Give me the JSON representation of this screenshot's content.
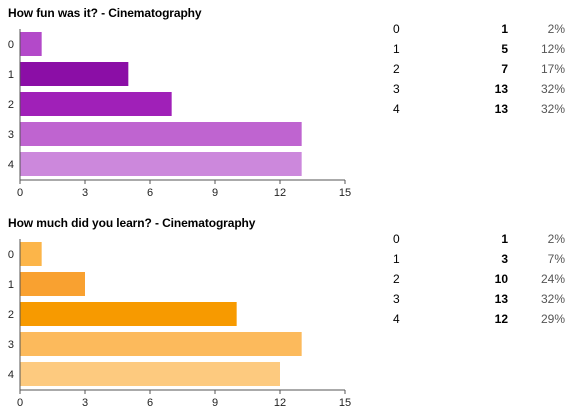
{
  "chart_data": [
    {
      "type": "bar",
      "orientation": "horizontal",
      "title": "How fun was it? - Cinematography",
      "categories": [
        "0",
        "1",
        "2",
        "3",
        "4"
      ],
      "values": [
        1,
        5,
        7,
        13,
        13
      ],
      "percents": [
        "2%",
        "12%",
        "17%",
        "32%",
        "32%"
      ],
      "xlim": [
        0,
        15
      ],
      "xticks": [
        "0",
        "3",
        "6",
        "9",
        "12",
        "15"
      ],
      "bar_colors": [
        "#b349c9",
        "#8b0ea6",
        "#a020b8",
        "#bf64d0",
        "#cc88dc"
      ],
      "grid": false
    },
    {
      "type": "bar",
      "orientation": "horizontal",
      "title": "How much did you learn? - Cinematography",
      "categories": [
        "0",
        "1",
        "2",
        "3",
        "4"
      ],
      "values": [
        1,
        3,
        10,
        13,
        12
      ],
      "percents": [
        "2%",
        "7%",
        "24%",
        "32%",
        "29%"
      ],
      "xlim": [
        0,
        15
      ],
      "xticks": [
        "0",
        "3",
        "6",
        "9",
        "12",
        "15"
      ],
      "bar_colors": [
        "#fcb549",
        "#f9a130",
        "#f79a00",
        "#fcba5c",
        "#fdca7f"
      ],
      "grid": false
    }
  ]
}
